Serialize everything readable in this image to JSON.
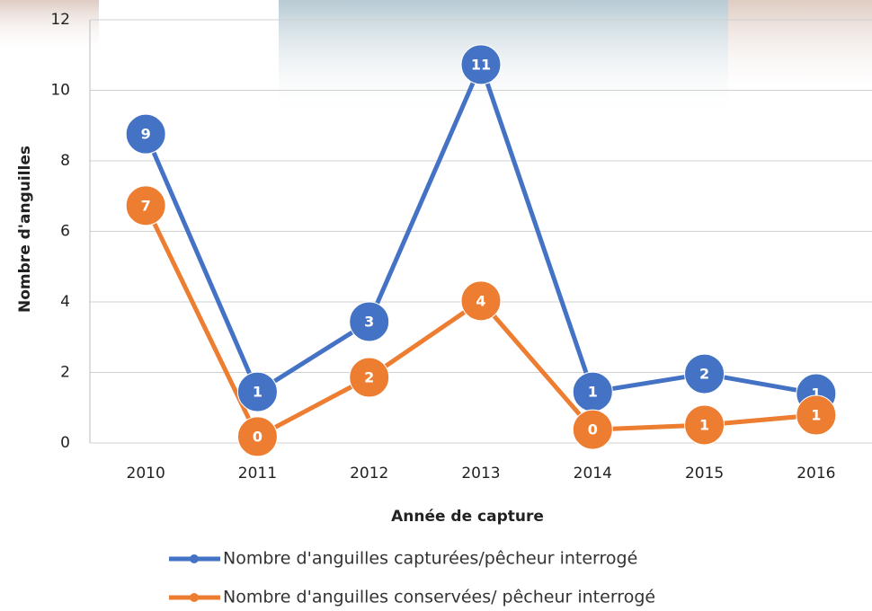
{
  "chart_data": {
    "type": "line",
    "x_label": "Année de capture",
    "y_label": "Nombre d'anguilles",
    "categories": [
      "2010",
      "2011",
      "2012",
      "2013",
      "2014",
      "2015",
      "2016"
    ],
    "series": [
      {
        "name": "Nombre d'anguilles capturées/pêcheur interrogé",
        "color": "#4472c4",
        "values": [
          8.76,
          1.45,
          3.44,
          10.73,
          1.45,
          1.96,
          1.4
        ],
        "value_labels": [
          "9",
          "1",
          "3",
          "11",
          "1",
          "2",
          "1"
        ]
      },
      {
        "name": "Nombre d'anguilles conservées/ pêcheur interrogé",
        "color": "#ed7d31",
        "values": [
          6.73,
          0.18,
          1.86,
          4.03,
          0.38,
          0.51,
          0.79
        ],
        "value_labels": [
          "7",
          "0",
          "2",
          "4",
          "0",
          "1",
          "1"
        ]
      }
    ],
    "ylim": [
      0,
      12
    ],
    "yticks": [
      0,
      2,
      4,
      6,
      8,
      10,
      12
    ],
    "grid": true
  }
}
